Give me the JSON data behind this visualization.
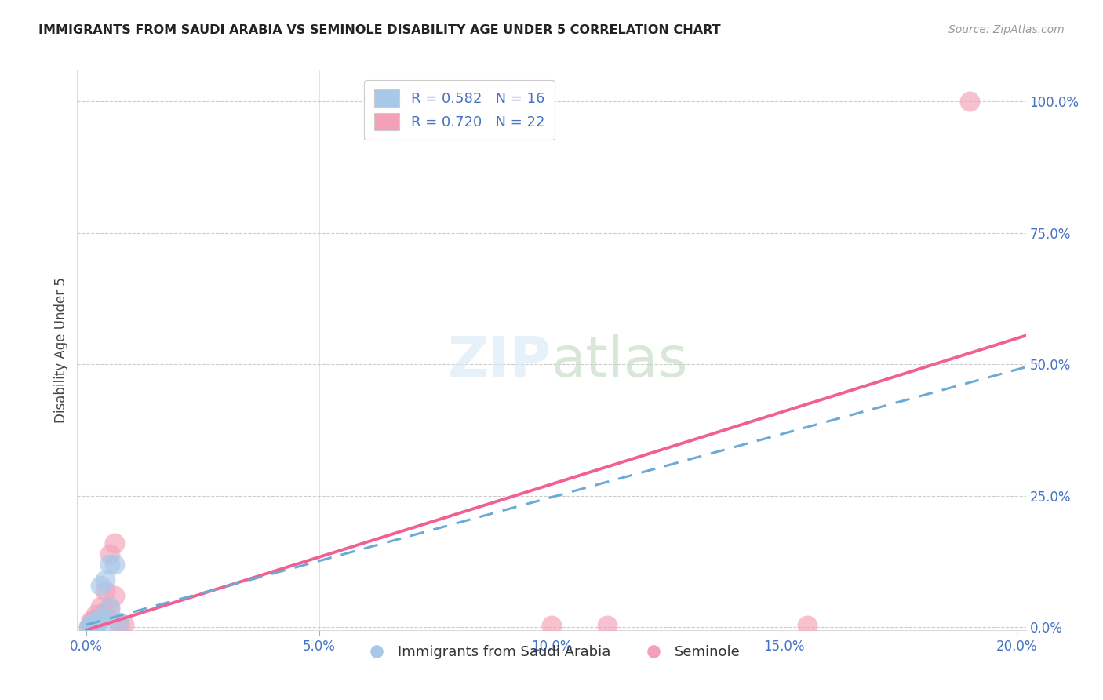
{
  "title": "IMMIGRANTS FROM SAUDI ARABIA VS SEMINOLE DISABILITY AGE UNDER 5 CORRELATION CHART",
  "source": "Source: ZipAtlas.com",
  "xlabel": "",
  "ylabel": "Disability Age Under 5",
  "xlim": [
    -0.002,
    0.202
  ],
  "ylim": [
    -0.005,
    1.06
  ],
  "xticks": [
    0.0,
    0.05,
    0.1,
    0.15,
    0.2
  ],
  "xtick_labels": [
    "0.0%",
    "5.0%",
    "10.0%",
    "15.0%",
    "20.0%"
  ],
  "yticks": [
    0.0,
    0.25,
    0.5,
    0.75,
    1.0
  ],
  "ytick_labels": [
    "0.0%",
    "25.0%",
    "50.0%",
    "75.0%",
    "100.0%"
  ],
  "legend_labels": [
    "Immigrants from Saudi Arabia",
    "Seminole"
  ],
  "legend_r_blue": "R = 0.582",
  "legend_n_blue": "N = 16",
  "legend_r_pink": "R = 0.720",
  "legend_n_pink": "N = 22",
  "blue_color": "#a8c8e8",
  "pink_color": "#f4a0b8",
  "blue_line_color": "#6aaad8",
  "pink_line_color": "#f06090",
  "label_color": "#4472c4",
  "background_color": "#ffffff",
  "grid_color": "#cccccc",
  "blue_points_x": [
    0.0005,
    0.001,
    0.001,
    0.0012,
    0.0015,
    0.002,
    0.002,
    0.0025,
    0.003,
    0.003,
    0.004,
    0.004,
    0.005,
    0.005,
    0.006,
    0.007
  ],
  "blue_points_y": [
    0.0,
    0.002,
    0.004,
    0.005,
    0.008,
    0.01,
    0.005,
    0.012,
    0.018,
    0.08,
    0.01,
    0.09,
    0.04,
    0.12,
    0.12,
    0.01
  ],
  "pink_points_x": [
    0.0005,
    0.001,
    0.001,
    0.001,
    0.001,
    0.002,
    0.002,
    0.002,
    0.003,
    0.003,
    0.004,
    0.004,
    0.005,
    0.005,
    0.006,
    0.006,
    0.007,
    0.008,
    0.1,
    0.112,
    0.155,
    0.19
  ],
  "pink_points_y": [
    0.0,
    0.002,
    0.005,
    0.008,
    0.012,
    0.005,
    0.015,
    0.025,
    0.015,
    0.04,
    0.03,
    0.07,
    0.035,
    0.14,
    0.16,
    0.06,
    0.005,
    0.005,
    0.004,
    0.004,
    0.004,
    1.0
  ],
  "blue_line_x": [
    0.0,
    0.202
  ],
  "blue_line_y": [
    0.005,
    0.495
  ],
  "pink_line_x": [
    0.0,
    0.202
  ],
  "pink_line_y": [
    -0.005,
    0.555
  ],
  "tick_line_color": "#aaaaaa"
}
